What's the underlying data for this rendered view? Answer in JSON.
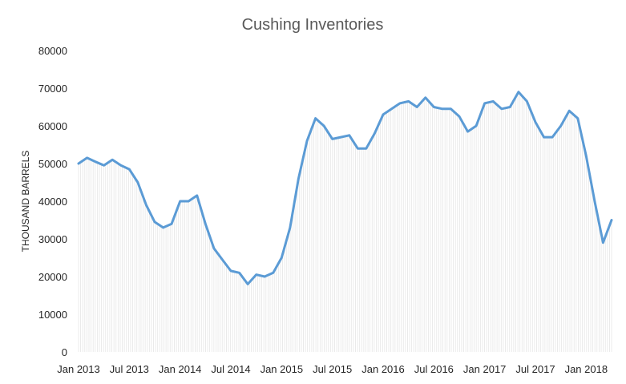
{
  "chart_data": {
    "type": "line",
    "title": "Cushing Inventories",
    "ylabel": "THOUSAND BARRELS",
    "xlabel": "",
    "ylim": [
      0,
      80000
    ],
    "y_ticks": [
      0,
      10000,
      20000,
      30000,
      40000,
      50000,
      60000,
      70000,
      80000
    ],
    "x_tick_labels": [
      "Jan 2013",
      "Jul 2013",
      "Jan 2014",
      "Jul 2014",
      "Jan 2015",
      "Jul 2015",
      "Jan 2016",
      "Jul 2016",
      "Jan 2017",
      "Jul 2017",
      "Jan 2018"
    ],
    "grid": false,
    "legend": "none",
    "colors": {
      "line": "#5B9BD5",
      "drop_lines": "#e6e6e6"
    },
    "series": [
      {
        "points": [
          [
            "Jan 2013",
            50000
          ],
          [
            "Feb 2013",
            51500
          ],
          [
            "Mar 2013",
            50500
          ],
          [
            "Apr 2013",
            49500
          ],
          [
            "May 2013",
            51000
          ],
          [
            "Jun 2013",
            49500
          ],
          [
            "Jul 2013",
            48500
          ],
          [
            "Aug 2013",
            45000
          ],
          [
            "Sep 2013",
            39000
          ],
          [
            "Oct 2013",
            34500
          ],
          [
            "Nov 2013",
            33000
          ],
          [
            "Dec 2013",
            34000
          ],
          [
            "Jan 2014",
            40000
          ],
          [
            "Feb 2014",
            40000
          ],
          [
            "Mar 2014",
            41500
          ],
          [
            "Apr 2014",
            34000
          ],
          [
            "May 2014",
            27500
          ],
          [
            "Jun 2014",
            24500
          ],
          [
            "Jul 2014",
            21500
          ],
          [
            "Aug 2014",
            21000
          ],
          [
            "Sep 2014",
            18000
          ],
          [
            "Oct 2014",
            20500
          ],
          [
            "Nov 2014",
            20000
          ],
          [
            "Dec 2014",
            21000
          ],
          [
            "Jan 2015",
            25000
          ],
          [
            "Feb 2015",
            33000
          ],
          [
            "Mar 2015",
            46000
          ],
          [
            "Apr 2015",
            56000
          ],
          [
            "May 2015",
            62000
          ],
          [
            "Jun 2015",
            60000
          ],
          [
            "Jul 2015",
            56500
          ],
          [
            "Aug 2015",
            57000
          ],
          [
            "Sep 2015",
            57500
          ],
          [
            "Oct 2015",
            54000
          ],
          [
            "Nov 2015",
            54000
          ],
          [
            "Dec 2015",
            58000
          ],
          [
            "Jan 2016",
            63000
          ],
          [
            "Feb 2016",
            64500
          ],
          [
            "Mar 2016",
            66000
          ],
          [
            "Apr 2016",
            66500
          ],
          [
            "May 2016",
            65000
          ],
          [
            "Jun 2016",
            67500
          ],
          [
            "Jul 2016",
            65000
          ],
          [
            "Aug 2016",
            64500
          ],
          [
            "Sep 2016",
            64500
          ],
          [
            "Oct 2016",
            62500
          ],
          [
            "Nov 2016",
            58500
          ],
          [
            "Dec 2016",
            60000
          ],
          [
            "Jan 2017",
            66000
          ],
          [
            "Feb 2017",
            66500
          ],
          [
            "Mar 2017",
            64500
          ],
          [
            "Apr 2017",
            65000
          ],
          [
            "May 2017",
            69000
          ],
          [
            "Jun 2017",
            66500
          ],
          [
            "Jul 2017",
            61000
          ],
          [
            "Aug 2017",
            57000
          ],
          [
            "Sep 2017",
            57000
          ],
          [
            "Oct 2017",
            60000
          ],
          [
            "Nov 2017",
            64000
          ],
          [
            "Dec 2017",
            62000
          ],
          [
            "Jan 2018",
            52000
          ],
          [
            "Feb 2018",
            40000
          ],
          [
            "Mar 2018",
            29000
          ],
          [
            "Apr 2018",
            35000
          ]
        ]
      }
    ]
  }
}
